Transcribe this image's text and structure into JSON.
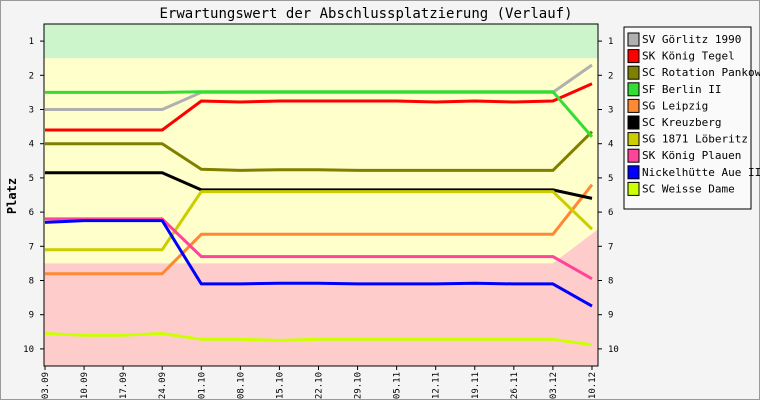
{
  "chart_data": {
    "type": "line",
    "title": "Erwartungswert der Abschlussplatzierung (Verlauf)",
    "ylabel": "Platz",
    "xlabel": "",
    "ylim": [
      0.5,
      10.5
    ],
    "y_inverted": true,
    "yticks": [
      1,
      2,
      3,
      4,
      5,
      6,
      7,
      8,
      9,
      10
    ],
    "categories": [
      "03.09",
      "10.09",
      "17.09",
      "24.09",
      "01.10",
      "08.10",
      "15.10",
      "22.10",
      "29.10",
      "05.11",
      "12.11",
      "19.11",
      "26.11",
      "03.12",
      "10.12"
    ],
    "legend_position": "right",
    "background_bands": [
      {
        "color": "#ccf5cc",
        "from": [
          1.5,
          1.5
        ],
        "to": [
          0.5,
          0.5
        ]
      },
      {
        "color": "#ffffcc",
        "from": [
          7.5,
          6.5
        ],
        "to": [
          1.5,
          1.5
        ]
      },
      {
        "color": "#ffcccc",
        "from": [
          10.5,
          10.5
        ],
        "to": [
          7.5,
          6.5
        ]
      }
    ],
    "series": [
      {
        "name": "SV Görlitz 1990",
        "color": "#b0b0b0",
        "values": [
          3.0,
          3.0,
          3.0,
          3.0,
          2.5,
          2.5,
          2.5,
          2.5,
          2.5,
          2.5,
          2.5,
          2.5,
          2.5,
          2.5,
          1.7
        ]
      },
      {
        "name": "SK König Tegel",
        "color": "#ff0000",
        "values": [
          3.6,
          3.6,
          3.6,
          3.6,
          2.75,
          2.78,
          2.75,
          2.75,
          2.75,
          2.75,
          2.78,
          2.75,
          2.78,
          2.75,
          2.25
        ]
      },
      {
        "name": "SC Rotation Pankow",
        "color": "#808000",
        "values": [
          4.0,
          4.0,
          4.0,
          4.0,
          4.75,
          4.78,
          4.76,
          4.76,
          4.78,
          4.78,
          4.78,
          4.78,
          4.78,
          4.78,
          3.65
        ]
      },
      {
        "name": "SF Berlin II",
        "color": "#33dd33",
        "values": [
          2.5,
          2.5,
          2.5,
          2.5,
          2.48,
          2.48,
          2.48,
          2.48,
          2.48,
          2.48,
          2.48,
          2.48,
          2.48,
          2.48,
          3.8
        ]
      },
      {
        "name": "SG Leipzig",
        "color": "#ff8833",
        "values": [
          7.8,
          7.8,
          7.8,
          7.8,
          6.65,
          6.65,
          6.65,
          6.65,
          6.65,
          6.65,
          6.65,
          6.65,
          6.65,
          6.65,
          5.2
        ]
      },
      {
        "name": "SC Kreuzberg",
        "color": "#000000",
        "values": [
          4.85,
          4.85,
          4.85,
          4.85,
          5.35,
          5.35,
          5.35,
          5.35,
          5.35,
          5.35,
          5.35,
          5.35,
          5.35,
          5.35,
          5.6
        ]
      },
      {
        "name": "SG 1871 Löberitz",
        "color": "#cccc00",
        "values": [
          7.1,
          7.1,
          7.1,
          7.1,
          5.4,
          5.4,
          5.4,
          5.4,
          5.4,
          5.4,
          5.4,
          5.4,
          5.4,
          5.4,
          6.5
        ]
      },
      {
        "name": "SK König Plauen",
        "color": "#ff4499",
        "values": [
          6.2,
          6.2,
          6.2,
          6.2,
          7.3,
          7.3,
          7.3,
          7.3,
          7.3,
          7.3,
          7.3,
          7.3,
          7.3,
          7.3,
          7.95
        ]
      },
      {
        "name": "Nickelhütte Aue II",
        "color": "#0000ff",
        "values": [
          6.3,
          6.25,
          6.25,
          6.25,
          8.1,
          8.1,
          8.08,
          8.08,
          8.1,
          8.1,
          8.1,
          8.08,
          8.1,
          8.1,
          8.75
        ]
      },
      {
        "name": "SC Weisse Dame",
        "color": "#ccff00",
        "values": [
          9.55,
          9.6,
          9.6,
          9.55,
          9.72,
          9.72,
          9.75,
          9.72,
          9.72,
          9.72,
          9.72,
          9.72,
          9.72,
          9.72,
          9.88
        ]
      }
    ]
  }
}
